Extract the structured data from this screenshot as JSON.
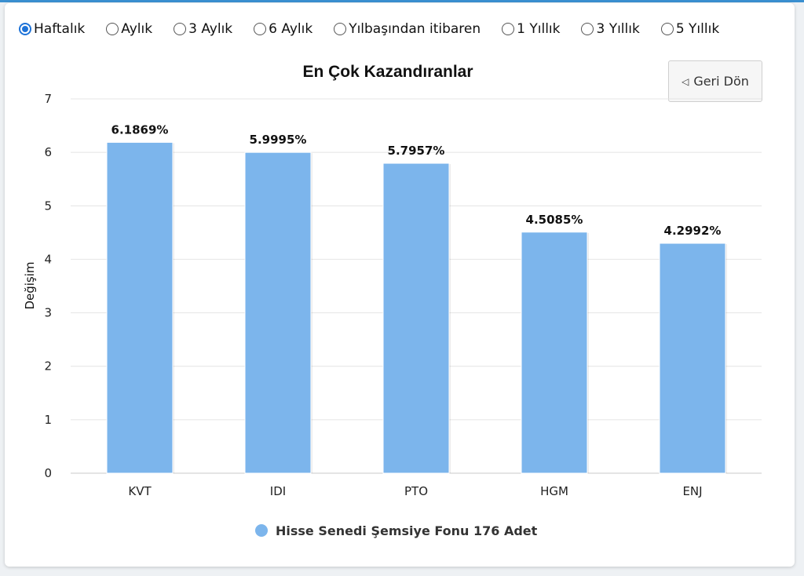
{
  "period_options": [
    {
      "label": "Haftalık",
      "checked": true
    },
    {
      "label": "Aylık",
      "checked": false
    },
    {
      "label": "3 Aylık",
      "checked": false
    },
    {
      "label": "6 Aylık",
      "checked": false
    },
    {
      "label": "Yılbaşından itibaren",
      "checked": false
    },
    {
      "label": "1 Yıllık",
      "checked": false
    },
    {
      "label": "3 Yıllık",
      "checked": false
    },
    {
      "label": "5 Yıllık",
      "checked": false
    }
  ],
  "back_button": {
    "label": "Geri Dön",
    "icon": "triangle-left-icon"
  },
  "chart_data": {
    "type": "bar",
    "title": "En Çok Kazandıranlar",
    "xlabel": "",
    "ylabel": "Değişim",
    "categories": [
      "KVT",
      "IDI",
      "PTO",
      "HGM",
      "ENJ"
    ],
    "series": [
      {
        "name": "Hisse Senedi Şemsiye Fonu 176 Adet",
        "values": [
          6.1869,
          5.9995,
          5.7957,
          4.5085,
          4.2992
        ],
        "labels": [
          "6.1869%",
          "5.9995%",
          "5.7957%",
          "4.5085%",
          "4.2992%"
        ],
        "color": "#7cb5ec"
      }
    ],
    "ylim": [
      0,
      7
    ],
    "yticks": [
      0,
      1,
      2,
      3,
      4,
      5,
      6,
      7
    ],
    "grid": true,
    "legend": "bottom-center"
  }
}
